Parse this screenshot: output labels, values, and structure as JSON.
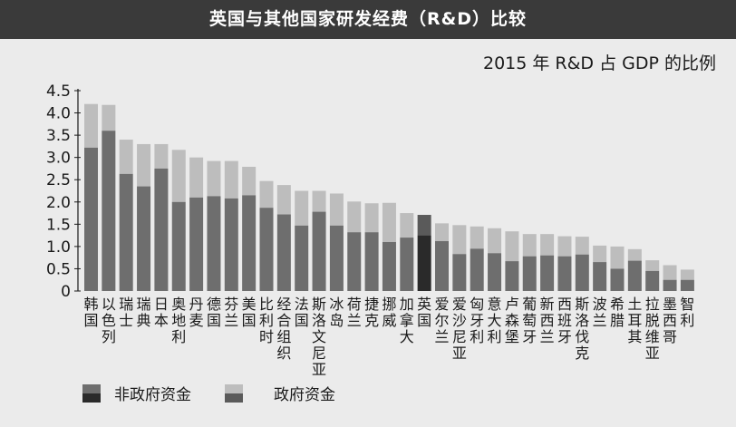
{
  "title": "英国与其他国家研发经费（R&D）比较",
  "subtitle": "2015 年 R&D 占 GDP 的比例",
  "colors": {
    "business": "#6e6e6e",
    "government": "#bdbdbd",
    "uk_business": "#2a2a2a",
    "uk_government": "#5a5a5a",
    "header": "#3a3a3a",
    "background": "#ebebeb"
  },
  "legend": {
    "business_label": "非政府资金",
    "government_label": "政府资金"
  },
  "chart_data": {
    "type": "bar",
    "stacked": true,
    "ylim": [
      0,
      4.5
    ],
    "yticks": [
      "0",
      "0.5",
      "1.0",
      "1.5",
      "2.0",
      "2.5",
      "3.0",
      "3.5",
      "4.0",
      "4.5"
    ],
    "grid": false,
    "categories": [
      "韩国",
      "以色列",
      "瑞士",
      "瑞典",
      "日本",
      "奥地利",
      "丹麦",
      "德国",
      "芬兰",
      "美国",
      "比利时",
      "经合组织",
      "法国",
      "斯洛文尼亚",
      "冰岛",
      "荷兰",
      "捷克",
      "挪威",
      "加拿大",
      "英国",
      "爱尔兰",
      "爱沙尼亚",
      "匈牙利",
      "意大利",
      "卢森堡",
      "葡萄牙",
      "新西兰",
      "西班牙",
      "斯洛伐克",
      "波兰",
      "希腊",
      "土耳其",
      "拉脱维亚",
      "墨西哥",
      "智利"
    ],
    "highlight": "英国",
    "series": [
      {
        "name": "非政府资金",
        "values": [
          3.22,
          3.6,
          2.63,
          2.35,
          2.75,
          2.0,
          2.1,
          2.13,
          2.08,
          2.15,
          1.87,
          1.72,
          1.47,
          1.78,
          1.47,
          1.32,
          1.32,
          1.1,
          1.2,
          1.25,
          1.12,
          0.83,
          0.95,
          0.85,
          0.67,
          0.78,
          0.8,
          0.78,
          0.82,
          0.65,
          0.5,
          0.68,
          0.45,
          0.25,
          0.25
        ]
      },
      {
        "name": "政府资金",
        "values": [
          0.98,
          0.58,
          0.77,
          0.95,
          0.55,
          1.17,
          0.9,
          0.79,
          0.84,
          0.64,
          0.6,
          0.66,
          0.78,
          0.47,
          0.72,
          0.69,
          0.65,
          0.88,
          0.55,
          0.46,
          0.4,
          0.65,
          0.5,
          0.56,
          0.67,
          0.5,
          0.48,
          0.45,
          0.4,
          0.37,
          0.5,
          0.26,
          0.24,
          0.33,
          0.23
        ]
      }
    ]
  }
}
